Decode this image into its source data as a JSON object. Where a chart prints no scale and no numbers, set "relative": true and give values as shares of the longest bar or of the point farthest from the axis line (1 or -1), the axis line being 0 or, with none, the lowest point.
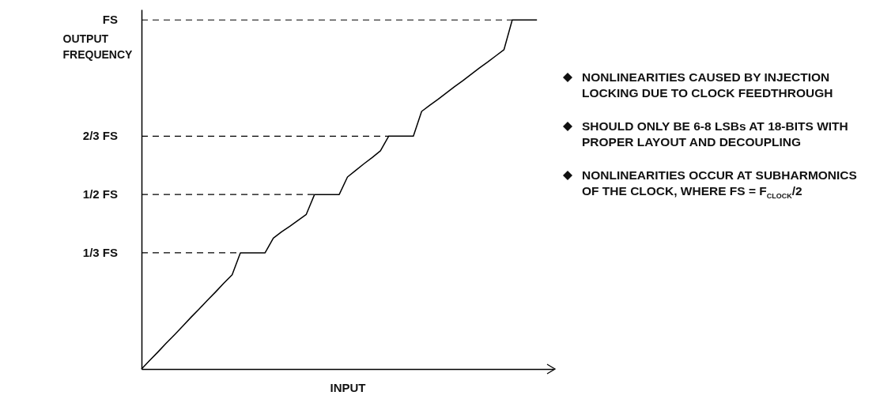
{
  "chart_data": {
    "type": "line",
    "ylabel": "OUTPUT FREQUENCY",
    "xlabel": "INPUT",
    "categories": [
      null,
      null,
      null,
      null,
      null,
      null,
      null,
      null,
      null,
      null,
      null,
      null,
      null,
      null,
      null,
      null,
      null,
      null,
      null,
      null,
      null,
      null,
      null,
      null,
      null,
      null,
      null,
      null,
      null,
      null,
      null,
      null,
      null,
      null,
      null,
      null,
      null,
      null,
      null,
      null,
      null,
      null,
      null,
      null,
      null,
      null,
      null,
      null,
      null,
      null,
      null
    ],
    "series": [
      {
        "color": "#000000",
        "values": [
          0,
          0.025,
          0.049,
          0.074,
          0.098,
          0.123,
          0.148,
          0.172,
          0.197,
          0.221,
          0.246,
          0.27,
          0.333,
          0.333,
          0.333,
          0.333,
          0.375,
          0.393,
          0.409,
          0.426,
          0.443,
          0.5,
          0.5,
          0.5,
          0.5,
          0.55,
          0.569,
          0.588,
          0.606,
          0.625,
          0.667,
          0.667,
          0.667,
          0.667,
          0.738,
          0.756,
          0.773,
          0.791,
          0.809,
          0.826,
          0.844,
          0.862,
          0.879,
          0.897,
          0.915,
          1,
          1,
          1,
          1,
          null,
          null
        ]
      }
    ],
    "relative": true,
    "ref_lines": [
      {
        "axis": "y",
        "value": 0.333,
        "label": "1/3 FS",
        "line_style": "dashed"
      },
      {
        "axis": "y",
        "value": 0.5,
        "label": "1/2 FS",
        "line_style": "dashed"
      },
      {
        "axis": "y",
        "value": 0.667,
        "label": "2/3 FS",
        "line_style": "dashed"
      },
      {
        "axis": "y",
        "value": 1,
        "label": "FS",
        "line_style": "dashed"
      }
    ],
    "annotations": [
      "NONLINEARITIES CAUSED BY INJECTION LOCKING DUE TO CLOCK FEEDTHROUGH",
      "SHOULD ONLY BE 6-8 LSBs AT 18-BITS WITH PROPER LAYOUT AND DECOUPLING",
      "NONLINEARITIES OCCUR AT SUBHARMONICS OF THE CLOCK, WHERE FS = F$_{CLOCK}$/2"
    ],
    "marker": "none",
    "line_style": "solid"
  }
}
